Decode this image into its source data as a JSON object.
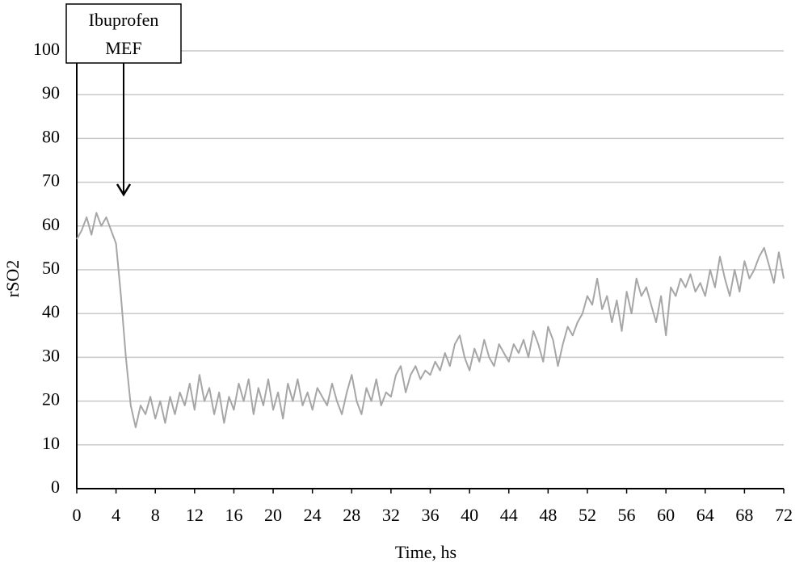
{
  "chart_data": {
    "type": "line",
    "x_label": "Time, hs",
    "y_label": "rSO2",
    "annotation": [
      "Ibuprofen",
      "MEF"
    ],
    "x": [
      0,
      0.5,
      1,
      1.5,
      2,
      2.5,
      3,
      3.5,
      4,
      4.5,
      5,
      5.5,
      6,
      6.5,
      7,
      7.5,
      8,
      8.5,
      9,
      9.5,
      10,
      10.5,
      11,
      11.5,
      12,
      12.5,
      13,
      13.5,
      14,
      14.5,
      15,
      15.5,
      16,
      16.5,
      17,
      17.5,
      18,
      18.5,
      19,
      19.5,
      20,
      20.5,
      21,
      21.5,
      22,
      22.5,
      23,
      23.5,
      24,
      24.5,
      25,
      25.5,
      26,
      26.5,
      27,
      27.5,
      28,
      28.5,
      29,
      29.5,
      30,
      30.5,
      31,
      31.5,
      32,
      32.5,
      33,
      33.5,
      34,
      34.5,
      35,
      35.5,
      36,
      36.5,
      37,
      37.5,
      38,
      38.5,
      39,
      39.5,
      40,
      40.5,
      41,
      41.5,
      42,
      42.5,
      43,
      43.5,
      44,
      44.5,
      45,
      45.5,
      46,
      46.5,
      47,
      47.5,
      48,
      48.5,
      49,
      49.5,
      50,
      50.5,
      51,
      51.5,
      52,
      52.5,
      53,
      53.5,
      54,
      54.5,
      55,
      55.5,
      56,
      56.5,
      57,
      57.5,
      58,
      58.5,
      59,
      59.5,
      60,
      60.5,
      61,
      61.5,
      62,
      62.5,
      63,
      63.5,
      64,
      64.5,
      65,
      65.5,
      66,
      66.5,
      67,
      67.5,
      68,
      68.5,
      69,
      69.5,
      70,
      70.5,
      71,
      71.5,
      72
    ],
    "values": [
      57,
      59,
      62,
      58,
      63,
      60,
      62,
      59,
      56,
      44,
      30,
      19,
      14,
      19,
      17,
      21,
      16,
      20,
      15,
      21,
      17,
      22,
      19,
      24,
      18,
      26,
      20,
      23,
      17,
      22,
      15,
      21,
      18,
      24,
      20,
      25,
      17,
      23,
      19,
      25,
      18,
      22,
      16,
      24,
      20,
      25,
      19,
      22,
      18,
      23,
      21,
      19,
      24,
      20,
      17,
      22,
      26,
      20,
      17,
      23,
      20,
      25,
      19,
      22,
      21,
      26,
      28,
      22,
      26,
      28,
      25,
      27,
      26,
      29,
      27,
      31,
      28,
      33,
      35,
      30,
      27,
      32,
      29,
      34,
      30,
      28,
      33,
      31,
      29,
      33,
      31,
      34,
      30,
      36,
      33,
      29,
      37,
      34,
      28,
      33,
      37,
      35,
      38,
      40,
      44,
      42,
      48,
      41,
      44,
      38,
      43,
      36,
      45,
      40,
      48,
      44,
      46,
      42,
      38,
      44,
      35,
      46,
      44,
      48,
      46,
      49,
      45,
      47,
      44,
      50,
      46,
      53,
      48,
      44,
      50,
      45,
      52,
      48,
      50,
      53,
      55,
      51,
      47,
      54,
      48
    ],
    "color": "#a6a6a6",
    "xlim": [
      0,
      72
    ],
    "xticks": [
      0,
      4,
      8,
      12,
      16,
      20,
      24,
      28,
      32,
      36,
      40,
      44,
      48,
      52,
      56,
      60,
      64,
      68,
      72
    ],
    "ylim": [
      0,
      100
    ],
    "yticks": [
      0,
      10,
      20,
      30,
      40,
      50,
      60,
      70,
      80,
      90,
      100
    ],
    "grid": true
  }
}
